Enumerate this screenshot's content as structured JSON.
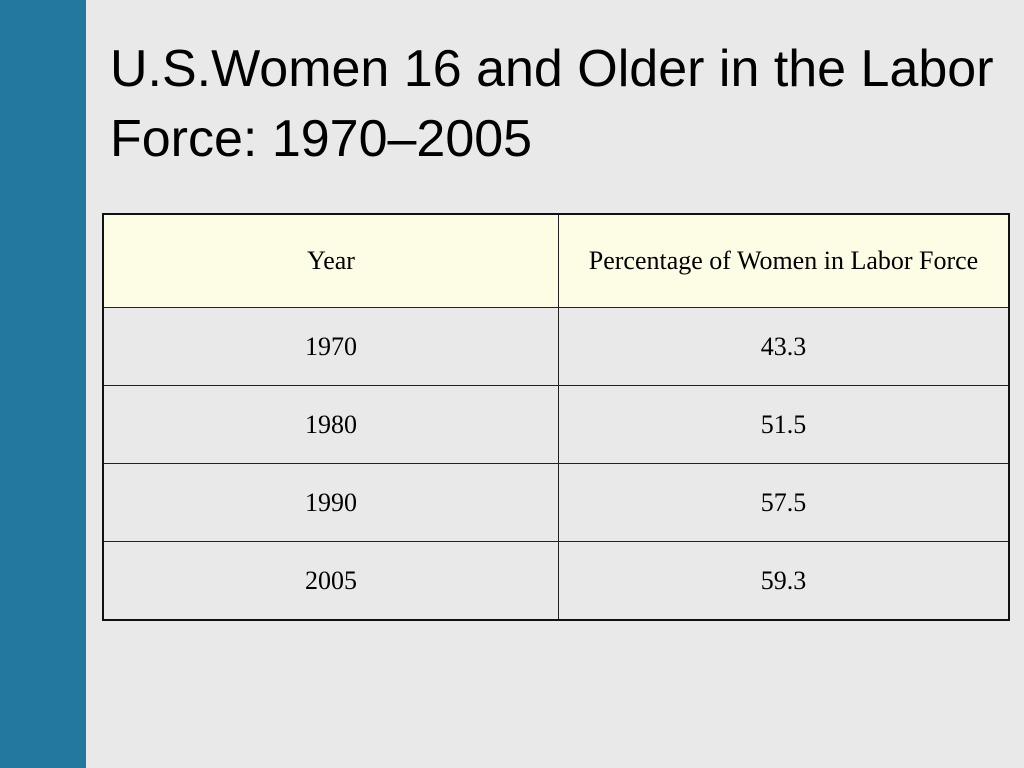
{
  "title": "U.S.Women 16 and Older in the Labor Force: 1970–2005",
  "table": {
    "header": [
      "Year",
      "Percentage of Women in Labor Force"
    ],
    "rows": [
      [
        "1970",
        "43.3"
      ],
      [
        "1980",
        "51.5"
      ],
      [
        "1990",
        "57.5"
      ],
      [
        "2005",
        "59.3"
      ]
    ]
  }
}
